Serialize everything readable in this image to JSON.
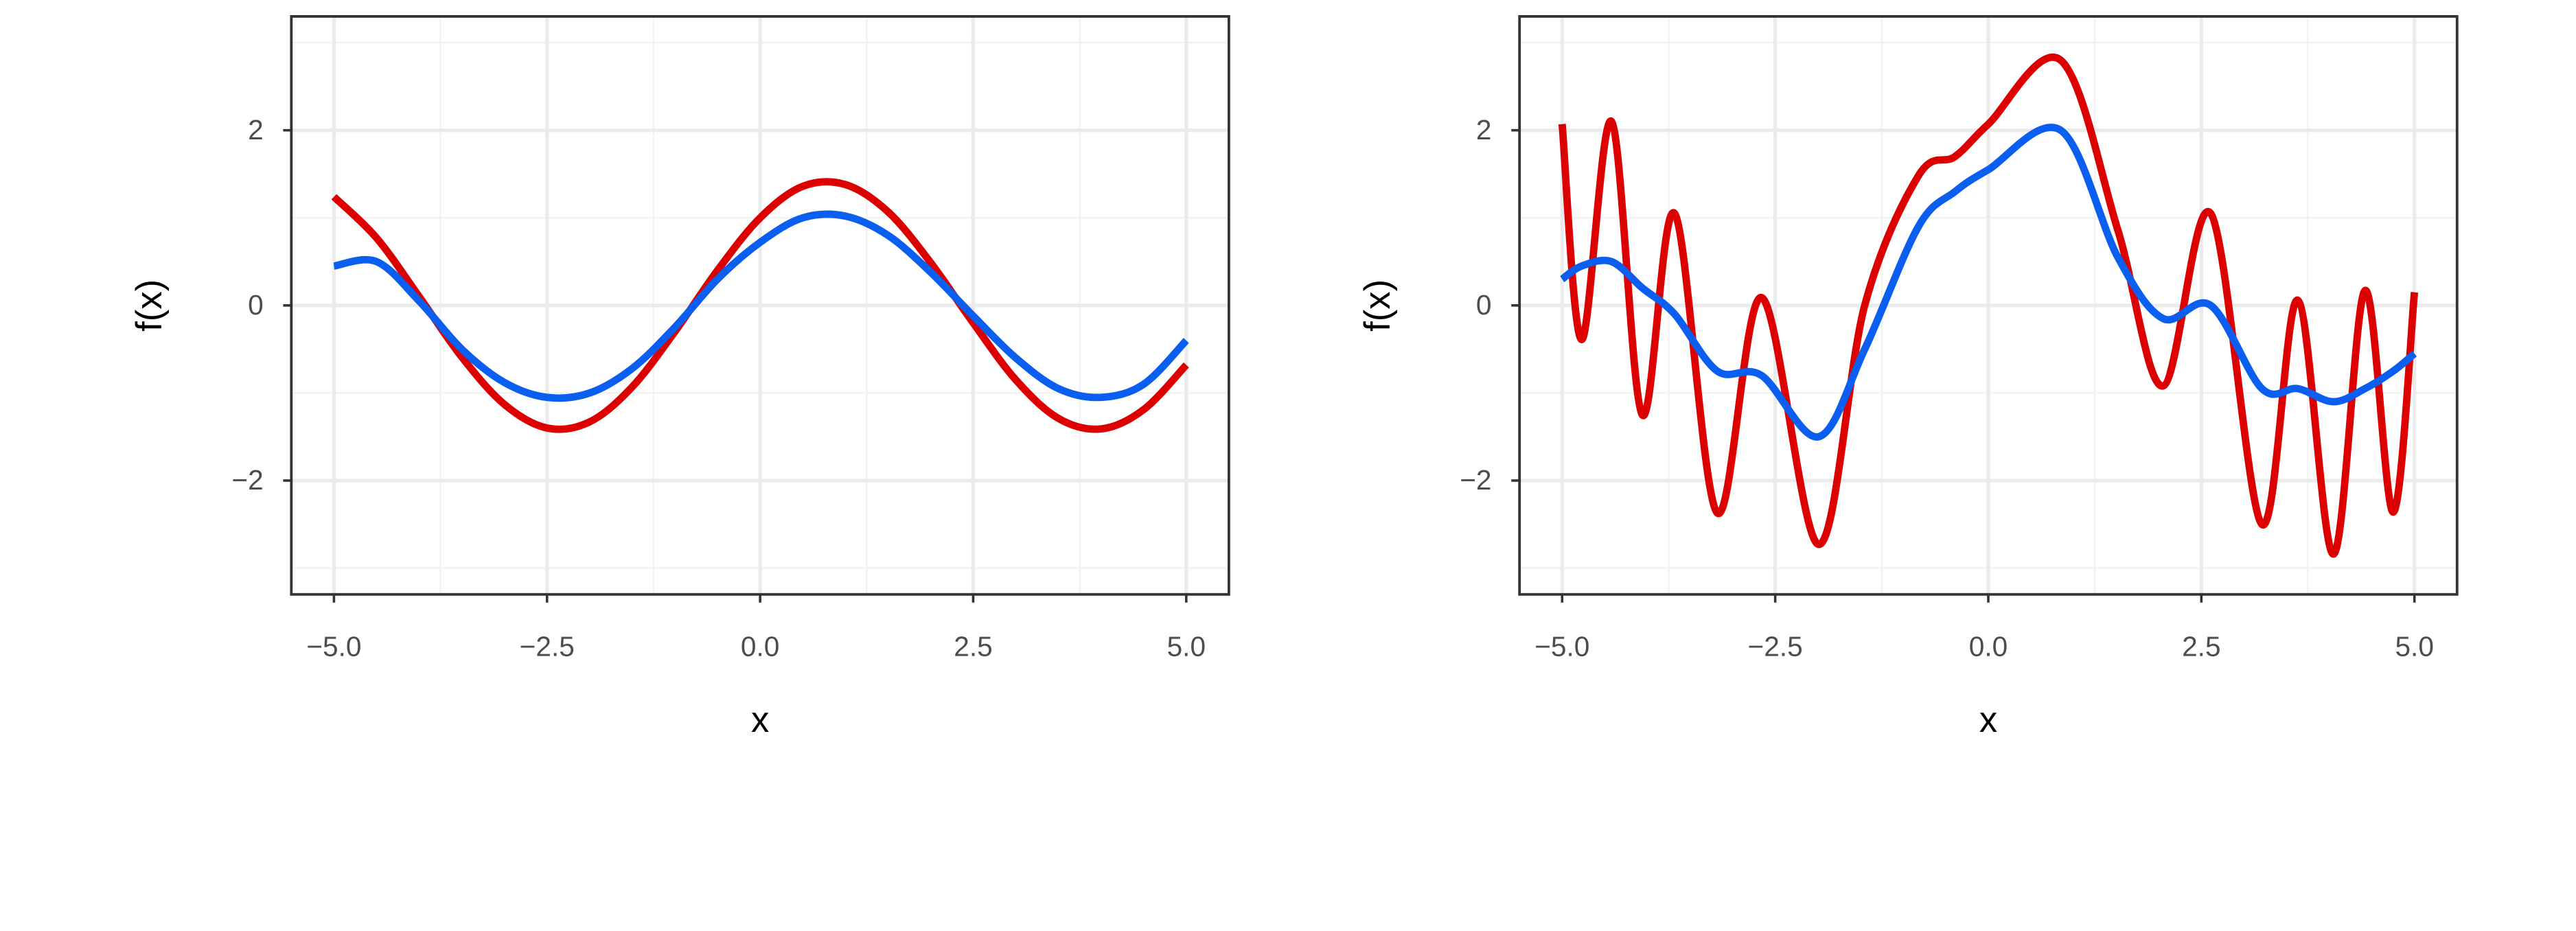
{
  "chart_data": [
    {
      "type": "line",
      "xlabel": "x",
      "ylabel": "f(x)",
      "x": [
        -5,
        -4.5,
        -4,
        -3.5,
        -3,
        -2.5,
        -2,
        -1.5,
        -1,
        -0.5,
        0,
        0.5,
        1,
        1.5,
        2,
        2.5,
        3,
        3.5,
        4,
        4.5,
        5
      ],
      "series": [
        {
          "color": "#dd0000",
          "values": [
            1.24,
            0.77,
            0.1,
            -0.59,
            -1.13,
            -1.4,
            -1.33,
            -0.93,
            -0.3,
            0.4,
            1,
            1.36,
            1.38,
            1.07,
            0.49,
            -0.2,
            -0.85,
            -1.29,
            -1.41,
            -1.19,
            -0.68
          ]
        },
        {
          "color": "#0a5ff0",
          "values": [
            0.45,
            0.5,
            0.05,
            -0.5,
            -0.88,
            -1.05,
            -1.0,
            -0.72,
            -0.25,
            0.3,
            0.72,
            1.0,
            1.02,
            0.8,
            0.38,
            -0.12,
            -0.6,
            -0.95,
            -1.05,
            -0.9,
            -0.4
          ]
        }
      ],
      "xlim": [
        -5.5,
        5.5
      ],
      "ylim": [
        -3.3,
        3.3
      ],
      "xticks": [
        {
          "value": -5,
          "label": "−5.0"
        },
        {
          "value": -2.5,
          "label": "−2.5"
        },
        {
          "value": 0,
          "label": "0.0"
        },
        {
          "value": 2.5,
          "label": "2.5"
        },
        {
          "value": 5,
          "label": "5.0"
        }
      ],
      "yticks": [
        {
          "value": -2,
          "label": "−2"
        },
        0,
        2
      ],
      "grid": true
    },
    {
      "type": "line",
      "xlabel": "x",
      "ylabel": "f(x)",
      "x": [
        -5,
        -4.77,
        -4.42,
        -4.06,
        -3.68,
        -3.18,
        -2.66,
        -1.99,
        -1.45,
        -0.82,
        -0.39,
        0,
        0.85,
        1.52,
        2.05,
        2.61,
        3.21,
        3.63,
        4.05,
        4.42,
        4.75,
        5
      ],
      "series": [
        {
          "color": "#dd0000",
          "values": [
            2.07,
            -0.39,
            2.1,
            -1.25,
            1.05,
            -2.37,
            0.09,
            -2.73,
            0,
            1.48,
            1.7,
            2.07,
            2.8,
            0.86,
            -0.92,
            1.05,
            -2.5,
            0.06,
            -2.84,
            0.17,
            -2.36,
            0.15
          ]
        },
        {
          "color": "#0a5ff0",
          "values": [
            0.3,
            0.45,
            0.5,
            0.2,
            -0.1,
            -0.75,
            -0.8,
            -1.5,
            -0.5,
            0.9,
            1.3,
            1.55,
            2.0,
            0.55,
            -0.15,
            0.0,
            -0.95,
            -0.95,
            -1.1,
            -0.95,
            -0.75,
            -0.55
          ]
        }
      ],
      "xlim": [
        -5.5,
        5.5
      ],
      "ylim": [
        -3.3,
        3.3
      ],
      "xticks": [
        {
          "value": -5,
          "label": "−5.0"
        },
        {
          "value": -2.5,
          "label": "−2.5"
        },
        {
          "value": 0,
          "label": "0.0"
        },
        {
          "value": 2.5,
          "label": "2.5"
        },
        {
          "value": 5,
          "label": "5.0"
        }
      ],
      "yticks": [
        {
          "value": -2,
          "label": "−2"
        },
        0,
        2
      ],
      "grid": true
    }
  ]
}
